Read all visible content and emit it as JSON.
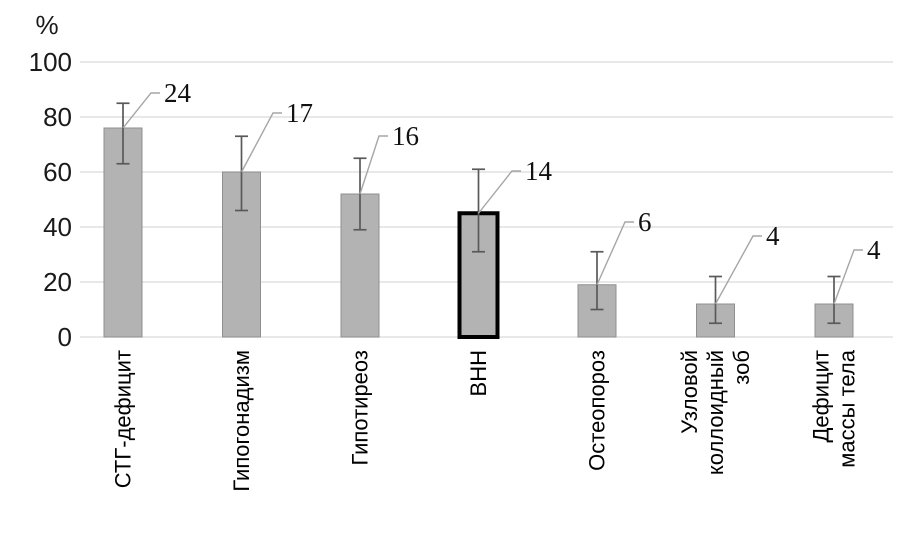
{
  "chart_data": {
    "type": "bar",
    "title": "",
    "xlabel": "",
    "ylabel": "%",
    "ylim": [
      0,
      100
    ],
    "yticks": [
      0,
      20,
      40,
      60,
      80,
      100
    ],
    "grid": true,
    "legend": false,
    "categories": [
      "СТГ-дефицит",
      "Гипогонадизм",
      "Гипотиреоз",
      "ВНН",
      "Остеопороз",
      "Узловой коллоидный зоб",
      "Дефицит массы тела"
    ],
    "category_label_lines": [
      [
        "СТГ-дефицит"
      ],
      [
        "Гипогонадизм"
      ],
      [
        "Гипотиреоз"
      ],
      [
        "ВНН"
      ],
      [
        "Остеопороз"
      ],
      [
        "Узловой",
        "коллоидный",
        "зоб"
      ],
      [
        "Дефицит",
        "массы тела"
      ]
    ],
    "values": [
      76,
      60,
      52,
      45,
      19,
      12,
      12
    ],
    "error_high": [
      85,
      73,
      65,
      61,
      31,
      22,
      22
    ],
    "error_low": [
      63,
      46,
      39,
      31,
      10,
      5,
      5
    ],
    "data_labels": [
      "24",
      "17",
      "16",
      "14",
      "6",
      "4",
      "4"
    ],
    "highlighted_category": "ВНН",
    "colors": {
      "background": "#ffffff",
      "bar_fill": "#b3b3b3",
      "bar_stroke": "#8f8f8f",
      "highlight_stroke": "#000000",
      "gridline": "#d9d9d9",
      "error_bar": "#595959",
      "leader_line": "#a6a6a6",
      "data_label_text": "#111111",
      "axis_text": "#1a1a1a"
    }
  }
}
